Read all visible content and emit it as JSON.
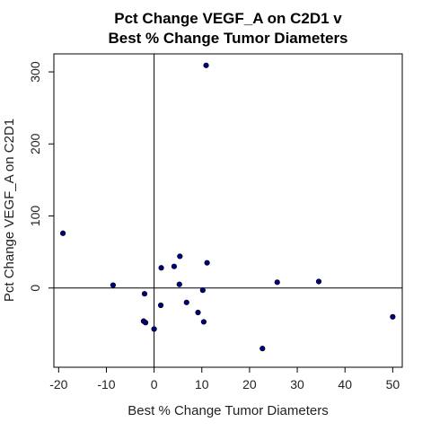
{
  "chart_data": {
    "type": "scatter",
    "title_lines": [
      "Pct Change VEGF_A on C2D1 v",
      "Best % Change Tumor Diameters"
    ],
    "xlabel": "Best % Change Tumor Diameters",
    "ylabel": "Pct Change VEGF_A on C2D1",
    "xlim": [
      -21,
      52
    ],
    "ylim": [
      -110,
      325
    ],
    "xticks": [
      -20,
      -10,
      0,
      10,
      20,
      30,
      40,
      50
    ],
    "yticks": [
      0,
      100,
      200,
      300
    ],
    "reference_lines": {
      "x": 0,
      "y": 0
    },
    "point_color": "#000080",
    "points": [
      {
        "x": 10.9,
        "y": 309
      },
      {
        "x": -19.1,
        "y": 76
      },
      {
        "x": 5.4,
        "y": 44
      },
      {
        "x": 11.1,
        "y": 35
      },
      {
        "x": 4.2,
        "y": 30
      },
      {
        "x": 1.5,
        "y": 28
      },
      {
        "x": 25.8,
        "y": 8
      },
      {
        "x": 34.5,
        "y": 9
      },
      {
        "x": -8.6,
        "y": 4
      },
      {
        "x": 5.3,
        "y": 5
      },
      {
        "x": 10.2,
        "y": -3
      },
      {
        "x": -2.0,
        "y": -8
      },
      {
        "x": 6.8,
        "y": -20
      },
      {
        "x": 1.4,
        "y": -24
      },
      {
        "x": 9.2,
        "y": -34
      },
      {
        "x": 50.0,
        "y": -40
      },
      {
        "x": -2.2,
        "y": -46
      },
      {
        "x": -1.8,
        "y": -48
      },
      {
        "x": 10.4,
        "y": -47
      },
      {
        "x": 0.0,
        "y": -57
      },
      {
        "x": 22.7,
        "y": -84
      }
    ]
  }
}
